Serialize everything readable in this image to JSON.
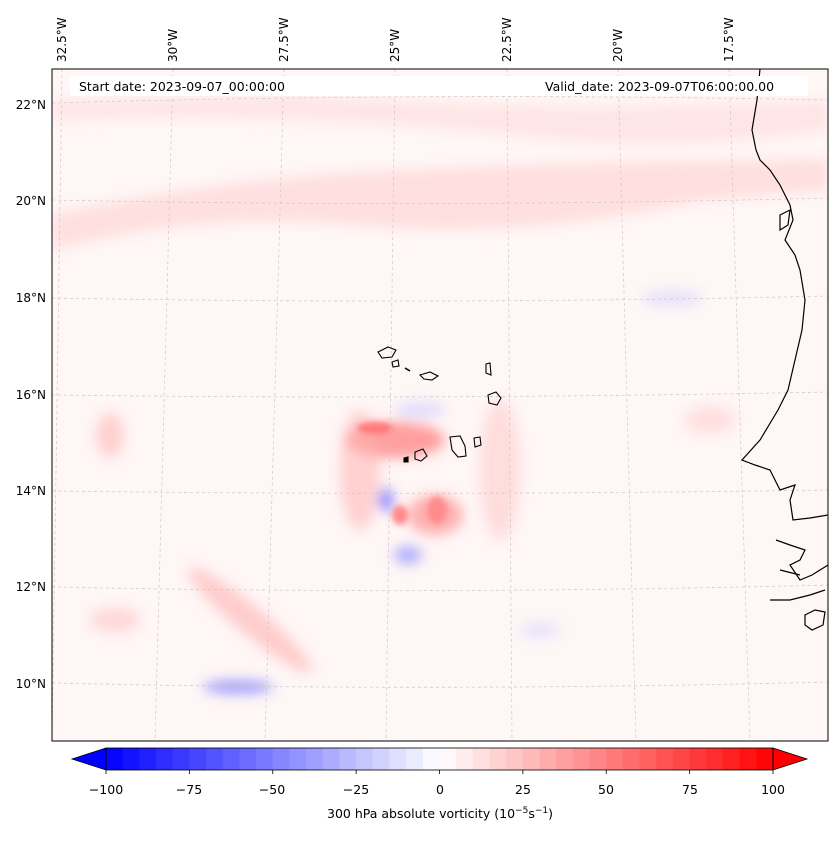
{
  "header": {
    "start_date": "Start date: 2023-09-07_00:00:00",
    "valid_date": "Valid_date: 2023-09-07T06:00:00.00"
  },
  "map": {
    "projection": "regional lat/lon",
    "lon_ticks": [
      "32.5°W",
      "30°W",
      "27.5°W",
      "25°W",
      "22.5°W",
      "20°W",
      "17.5°W"
    ],
    "lat_ticks": [
      "22°N",
      "20°N",
      "18°N",
      "16°N",
      "14°N",
      "12°N",
      "10°N"
    ],
    "gridlines": true,
    "features": [
      "coastline-africa",
      "cabo-verde-islands"
    ]
  },
  "colorbar": {
    "label": "300 hPa absolute vorticity (10",
    "label_exp1": "−5",
    "label_mid": "s",
    "label_exp2": "−1",
    "label_end": ")",
    "ticks": [
      "−100",
      "−75",
      "−50",
      "−25",
      "0",
      "25",
      "50",
      "75",
      "100"
    ],
    "range": [
      -100,
      100
    ],
    "colormap": "bwr",
    "extend": "both"
  },
  "colors": {
    "negative": "#0000ff",
    "zero": "#ffffff",
    "positive": "#ff0000",
    "coastline": "#000000",
    "grid": "#bbbbbb"
  }
}
